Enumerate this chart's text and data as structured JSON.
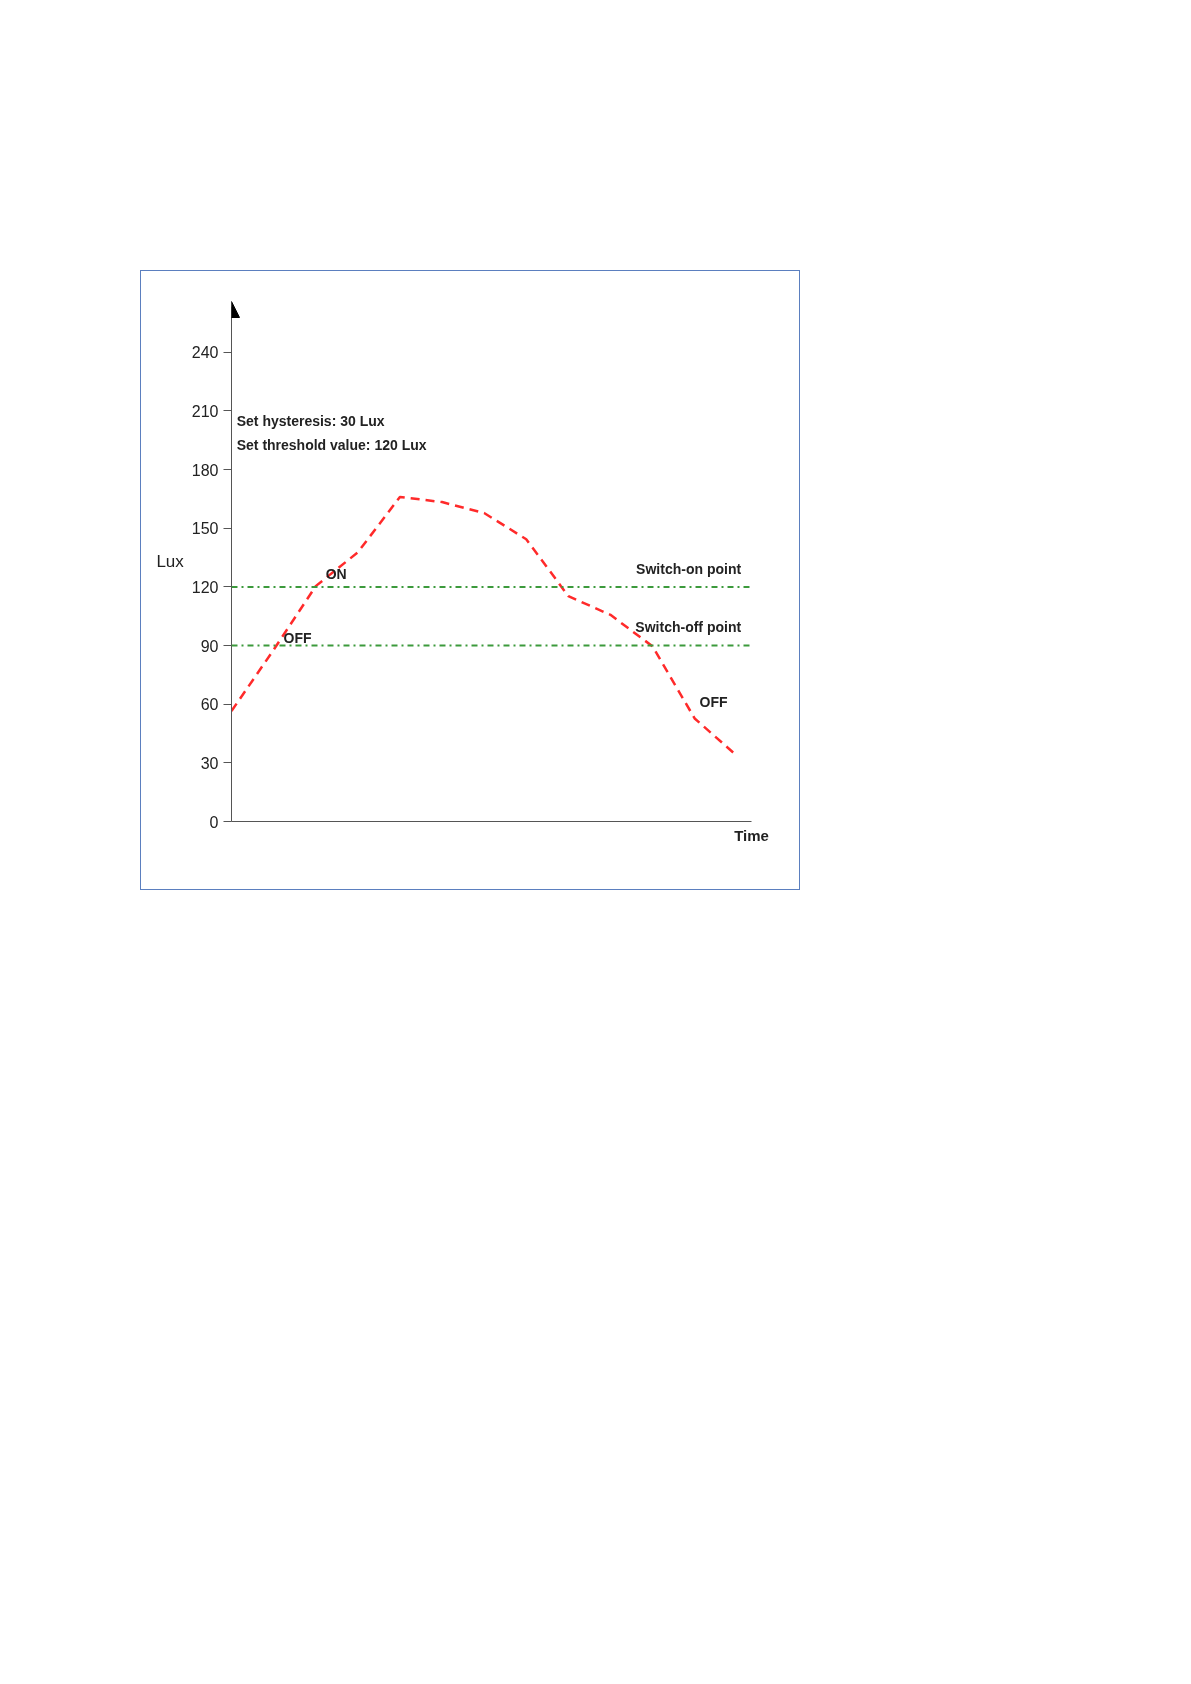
{
  "chart_data": {
    "type": "line",
    "xlabel": "Time",
    "ylabel": "Lux",
    "categories": [
      null,
      null,
      null,
      null,
      null,
      null,
      null,
      null,
      null,
      null,
      null,
      null,
      null
    ],
    "series": [
      {
        "color": "#ff2a2a",
        "values": [
          56.5,
          87.8,
          120.4,
          137.7,
          166,
          163.4,
          157.8,
          144.4,
          115.3,
          105.7,
          89.6,
          52.7,
          33.7
        ]
      }
    ],
    "ylim": [
      0,
      266
    ],
    "yticks": [
      0,
      30,
      60,
      90,
      120,
      150,
      180,
      210,
      240
    ],
    "tick_labels": "y",
    "grid": false,
    "marker": "none",
    "line_style": "dashed",
    "ref_lines": [
      {
        "axis": "y",
        "value": 120,
        "label": "Switch-on point",
        "color": "#3c9a3c",
        "line_style": "dashdot"
      },
      {
        "axis": "y",
        "value": 90,
        "label": "Switch-off point",
        "color": "#3c9a3c",
        "line_style": "dashdot"
      }
    ],
    "annotations": [
      "Set hysteresis:  30 Lux",
      "Set threshold value:  120 Lux",
      {
        "text": "ON",
        "y": 120.4
      },
      {
        "text": "OFF",
        "y": 87.8
      },
      "OFF"
    ]
  }
}
